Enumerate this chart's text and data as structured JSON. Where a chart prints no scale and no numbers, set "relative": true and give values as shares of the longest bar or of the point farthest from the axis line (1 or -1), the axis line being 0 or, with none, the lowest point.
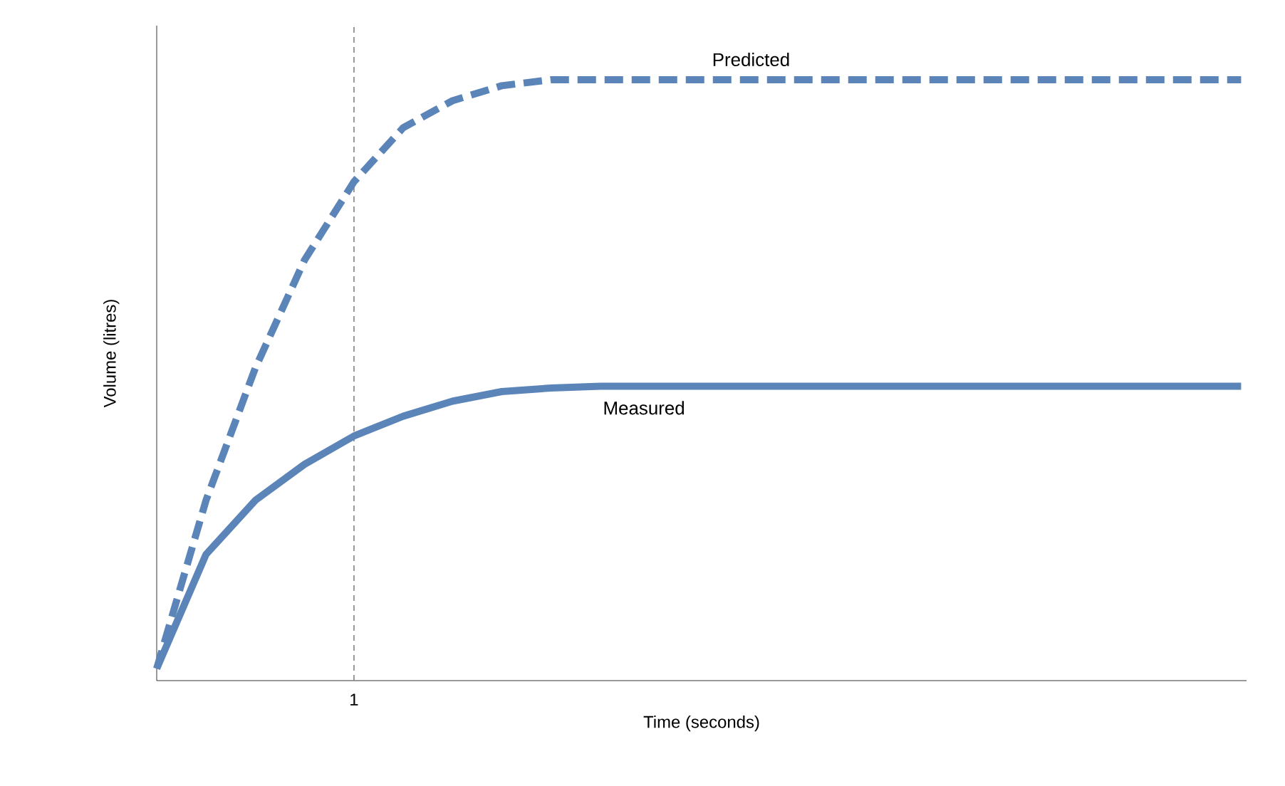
{
  "chart_data": {
    "type": "line",
    "relative": true,
    "xlabel": "Time (seconds)",
    "ylabel": "Volume (litres)",
    "line_style": "solid",
    "marker": "none",
    "annotations": [
      "1"
    ],
    "categories": [
      null,
      null,
      null,
      null,
      null,
      null,
      null,
      null,
      null,
      null,
      null,
      null,
      null,
      null,
      null,
      null,
      null,
      null,
      null,
      null,
      null,
      null,
      null
    ],
    "series": [
      {
        "name": "Predicted",
        "color": "#5b84b8",
        "line_style": "dashed",
        "values": [
          0.02,
          0.3,
          0.52,
          0.7,
          0.83,
          0.92,
          0.965,
          0.99,
          1,
          1,
          1,
          1,
          1,
          1,
          1,
          1,
          1,
          1,
          1,
          1,
          1,
          1,
          1
        ]
      },
      {
        "name": "Measured",
        "color": "#5b84b8",
        "values": [
          0.02,
          0.21,
          0.3,
          0.36,
          0.407,
          0.44,
          0.465,
          0.481,
          0.487,
          0.49,
          0.49,
          0.49,
          0.49,
          0.49,
          0.49,
          0.49,
          0.49,
          0.49,
          0.49,
          0.49,
          0.49,
          0.49,
          0.49
        ]
      }
    ]
  }
}
